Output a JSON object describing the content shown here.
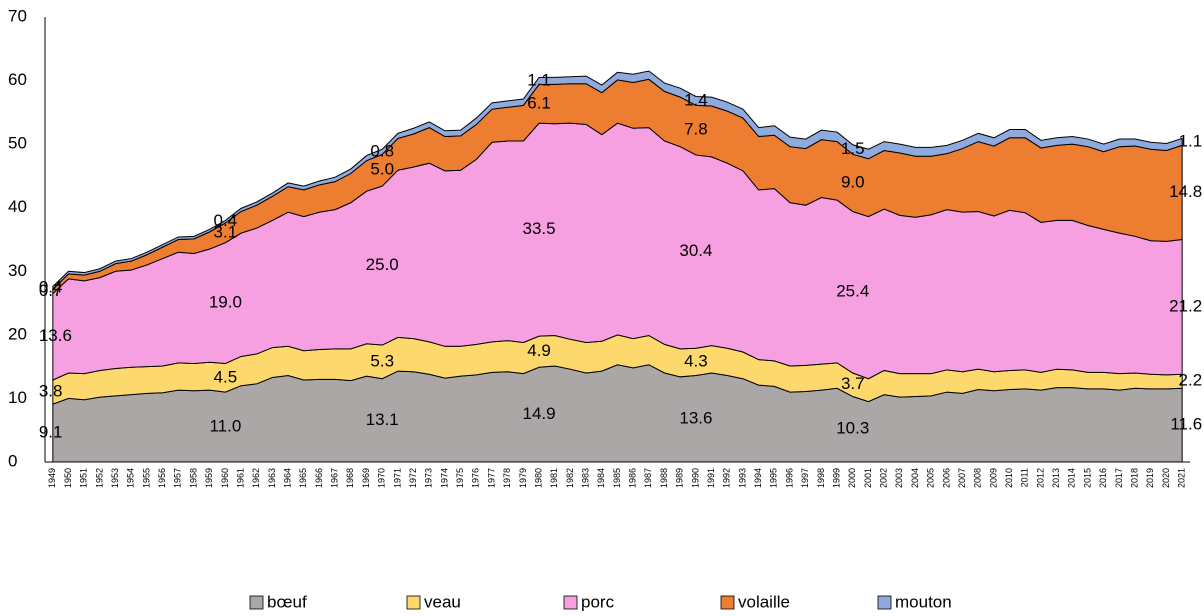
{
  "chart_data": {
    "type": "stacked_area",
    "categories": [
      "1949",
      "1950",
      "1951",
      "1952",
      "1953",
      "1954",
      "1955",
      "1956",
      "1957",
      "1958",
      "1959",
      "1960",
      "1961",
      "1962",
      "1963",
      "1964",
      "1965",
      "1966",
      "1967",
      "1968",
      "1969",
      "1970",
      "1971",
      "1972",
      "1973",
      "1974",
      "1975",
      "1976",
      "1977",
      "1978",
      "1979",
      "1980",
      "1981",
      "1982",
      "1983",
      "1984",
      "1985",
      "1986",
      "1987",
      "1988",
      "1989",
      "1990",
      "1991",
      "1992",
      "1993",
      "1994",
      "1995",
      "1996",
      "1997",
      "1998",
      "1999",
      "2000",
      "2001",
      "2002",
      "2003",
      "2004",
      "2005",
      "2006",
      "2007",
      "2008",
      "2009",
      "2010",
      "2011",
      "2012",
      "2013",
      "2014",
      "2015",
      "2016",
      "2017",
      "2018",
      "2019",
      "2020",
      "2021"
    ],
    "ylim": [
      0,
      70
    ],
    "yticks": [
      0,
      10,
      20,
      30,
      40,
      50,
      60,
      70
    ],
    "legend": "bottom",
    "series": [
      {
        "name": "bœuf",
        "color": "#aba7a6",
        "values": [
          9.1,
          10.0,
          9.8,
          10.2,
          10.4,
          10.6,
          10.8,
          10.9,
          11.3,
          11.2,
          11.3,
          11.0,
          12.0,
          12.3,
          13.3,
          13.6,
          12.9,
          13.0,
          13.0,
          12.8,
          13.5,
          13.1,
          14.3,
          14.2,
          13.8,
          13.2,
          13.5,
          13.7,
          14.1,
          14.2,
          13.9,
          14.9,
          15.1,
          14.6,
          14.0,
          14.3,
          15.3,
          14.8,
          15.3,
          14.0,
          13.4,
          13.6,
          14.0,
          13.6,
          13.1,
          12.1,
          11.9,
          11.0,
          11.1,
          11.3,
          11.6,
          10.3,
          9.5,
          10.6,
          10.2,
          10.3,
          10.4,
          11.0,
          10.8,
          11.4,
          11.2,
          11.4,
          11.5,
          11.3,
          11.7,
          11.7,
          11.5,
          11.5,
          11.3,
          11.6,
          11.5,
          11.5,
          11.6
        ],
        "value_labels": [
          "9.1",
          null,
          null,
          null,
          null,
          null,
          null,
          null,
          null,
          null,
          null,
          "11.0",
          null,
          null,
          null,
          null,
          null,
          null,
          null,
          null,
          null,
          "13.1",
          null,
          null,
          null,
          null,
          null,
          null,
          null,
          null,
          null,
          "14.9",
          null,
          null,
          null,
          null,
          null,
          null,
          null,
          null,
          null,
          "13.6",
          null,
          null,
          null,
          null,
          null,
          null,
          null,
          null,
          null,
          "10.3",
          null,
          null,
          null,
          null,
          null,
          null,
          null,
          null,
          null,
          null,
          null,
          null,
          null,
          null,
          null,
          null,
          null,
          null,
          null,
          null,
          "11.6"
        ]
      },
      {
        "name": "veau",
        "color": "#fdd96d",
        "values": [
          3.8,
          4.0,
          4.1,
          4.2,
          4.3,
          4.3,
          4.2,
          4.2,
          4.3,
          4.3,
          4.4,
          4.5,
          4.6,
          4.7,
          4.7,
          4.6,
          4.6,
          4.7,
          4.8,
          5.0,
          5.1,
          5.3,
          5.3,
          5.2,
          5.1,
          5.0,
          4.7,
          4.8,
          4.8,
          4.9,
          4.9,
          4.9,
          4.8,
          4.7,
          4.8,
          4.7,
          4.7,
          4.6,
          4.6,
          4.5,
          4.4,
          4.3,
          4.3,
          4.3,
          4.2,
          4.0,
          4.0,
          4.1,
          4.1,
          4.1,
          4.0,
          3.7,
          3.6,
          3.8,
          3.7,
          3.6,
          3.5,
          3.5,
          3.4,
          3.2,
          3.0,
          3.0,
          3.0,
          2.8,
          2.9,
          2.8,
          2.6,
          2.6,
          2.6,
          2.4,
          2.3,
          2.2,
          2.2
        ],
        "value_labels": [
          "3.8",
          null,
          null,
          null,
          null,
          null,
          null,
          null,
          null,
          null,
          null,
          "4.5",
          null,
          null,
          null,
          null,
          null,
          null,
          null,
          null,
          null,
          "5.3",
          null,
          null,
          null,
          null,
          null,
          null,
          null,
          null,
          null,
          "4.9",
          null,
          null,
          null,
          null,
          null,
          null,
          null,
          null,
          null,
          "4.3",
          null,
          null,
          null,
          null,
          null,
          null,
          null,
          null,
          null,
          "3.7",
          null,
          null,
          null,
          null,
          null,
          null,
          null,
          null,
          null,
          null,
          null,
          null,
          null,
          null,
          null,
          null,
          null,
          null,
          null,
          null,
          "2.2"
        ]
      },
      {
        "name": "porc",
        "color": "#f6a0e1",
        "values": [
          13.6,
          14.8,
          14.6,
          14.6,
          15.3,
          15.3,
          16.0,
          16.9,
          17.4,
          17.3,
          17.8,
          19.0,
          19.4,
          19.8,
          20.0,
          21.1,
          21.1,
          21.6,
          21.9,
          23.0,
          24.0,
          25.0,
          26.3,
          27.0,
          28.1,
          27.6,
          27.7,
          29.1,
          31.4,
          31.4,
          31.7,
          33.5,
          33.3,
          34.0,
          34.3,
          32.5,
          33.3,
          33.1,
          32.7,
          32.0,
          31.8,
          30.4,
          29.7,
          29.1,
          28.5,
          26.7,
          27.1,
          25.7,
          25.2,
          26.2,
          25.6,
          25.4,
          25.5,
          25.4,
          24.9,
          24.6,
          25.0,
          25.2,
          25.1,
          24.8,
          24.5,
          25.2,
          24.7,
          23.6,
          23.4,
          23.5,
          23.1,
          22.5,
          22.1,
          21.5,
          21.0,
          21.0,
          21.2
        ],
        "value_labels": [
          "13.6",
          null,
          null,
          null,
          null,
          null,
          null,
          null,
          null,
          null,
          null,
          "19.0",
          null,
          null,
          null,
          null,
          null,
          null,
          null,
          null,
          null,
          "25.0",
          null,
          null,
          null,
          null,
          null,
          null,
          null,
          null,
          null,
          "33.5",
          null,
          null,
          null,
          null,
          null,
          null,
          null,
          null,
          null,
          "30.4",
          null,
          null,
          null,
          null,
          null,
          null,
          null,
          null,
          null,
          "25.4",
          null,
          null,
          null,
          null,
          null,
          null,
          null,
          null,
          null,
          null,
          null,
          null,
          null,
          null,
          null,
          null,
          null,
          null,
          null,
          null,
          "21.2"
        ]
      },
      {
        "name": "volaille",
        "color": "#ed7d31",
        "values": [
          0.7,
          0.8,
          0.9,
          1.0,
          1.2,
          1.4,
          1.6,
          1.8,
          2.0,
          2.3,
          2.7,
          3.1,
          3.4,
          3.6,
          3.8,
          4.0,
          4.2,
          4.3,
          4.4,
          4.6,
          4.8,
          5.0,
          5.0,
          5.2,
          5.6,
          5.4,
          5.4,
          5.5,
          5.2,
          5.3,
          5.6,
          6.1,
          6.2,
          6.2,
          6.4,
          6.6,
          6.8,
          7.2,
          7.6,
          7.8,
          7.8,
          7.8,
          8.0,
          8.2,
          8.3,
          8.4,
          8.4,
          8.8,
          8.9,
          9.1,
          9.2,
          9.0,
          9.1,
          9.2,
          9.8,
          9.6,
          9.2,
          8.8,
          10.0,
          11.0,
          11.0,
          11.4,
          11.8,
          11.7,
          11.8,
          12.0,
          12.4,
          12.2,
          13.6,
          14.2,
          14.4,
          14.3,
          14.8
        ],
        "value_labels": [
          "0.7",
          null,
          null,
          null,
          null,
          null,
          null,
          null,
          null,
          null,
          null,
          "3.1",
          null,
          null,
          null,
          null,
          null,
          null,
          null,
          null,
          null,
          "5.0",
          null,
          null,
          null,
          null,
          null,
          null,
          null,
          null,
          null,
          "6.1",
          null,
          null,
          null,
          null,
          null,
          null,
          null,
          null,
          null,
          "7.8",
          null,
          null,
          null,
          null,
          null,
          null,
          null,
          null,
          null,
          "9.0",
          null,
          null,
          null,
          null,
          null,
          null,
          null,
          null,
          null,
          null,
          null,
          null,
          null,
          null,
          null,
          null,
          null,
          null,
          null,
          null,
          "14.8"
        ]
      },
      {
        "name": "mouton",
        "color": "#8faadc",
        "values": [
          0.4,
          0.4,
          0.4,
          0.4,
          0.4,
          0.4,
          0.4,
          0.4,
          0.4,
          0.4,
          0.4,
          0.4,
          0.5,
          0.5,
          0.5,
          0.6,
          0.6,
          0.6,
          0.7,
          0.7,
          0.8,
          0.8,
          0.8,
          0.9,
          0.9,
          0.9,
          0.9,
          1.0,
          1.0,
          1.0,
          1.0,
          1.1,
          1.1,
          1.1,
          1.2,
          1.2,
          1.2,
          1.3,
          1.3,
          1.3,
          1.4,
          1.4,
          1.4,
          1.4,
          1.4,
          1.4,
          1.5,
          1.5,
          1.5,
          1.5,
          1.5,
          1.5,
          1.5,
          1.4,
          1.4,
          1.4,
          1.4,
          1.3,
          1.3,
          1.3,
          1.3,
          1.3,
          1.3,
          1.2,
          1.2,
          1.2,
          1.2,
          1.2,
          1.2,
          1.1,
          1.1,
          1.1,
          1.1
        ],
        "value_labels": [
          "0.4",
          null,
          null,
          null,
          null,
          null,
          null,
          null,
          null,
          null,
          null,
          "0.4",
          null,
          null,
          null,
          null,
          null,
          null,
          null,
          null,
          null,
          "0.8",
          null,
          null,
          null,
          null,
          null,
          null,
          null,
          null,
          null,
          "1.1",
          null,
          null,
          null,
          null,
          null,
          null,
          null,
          null,
          null,
          "1.4",
          null,
          null,
          null,
          null,
          null,
          null,
          null,
          null,
          null,
          "1.5",
          null,
          null,
          null,
          null,
          null,
          null,
          null,
          null,
          null,
          null,
          null,
          null,
          null,
          null,
          null,
          null,
          null,
          null,
          null,
          null,
          "1.1"
        ]
      }
    ]
  }
}
